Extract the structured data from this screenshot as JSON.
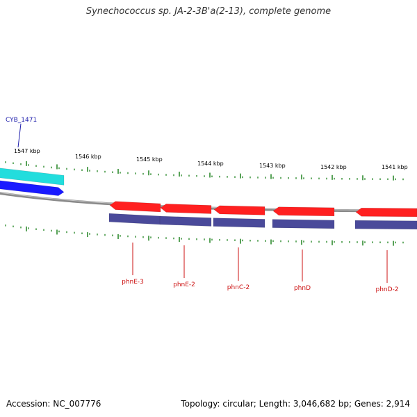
{
  "title": "Synechococcus sp. JA-2-3B'a(2-13), complete genome",
  "footer": {
    "accession": "Accession: NC_007776",
    "stats": "Topology: circular; Length: 3,046,682 bp; Genes: 2,914"
  },
  "colors": {
    "forward_gene": "#1a1aff",
    "forward_highlight": "#22dddd",
    "reverse_gene": "#ff2020",
    "reverse_cds": "#4a4a9a",
    "tick": "#2e8b2e",
    "backbone": "#8a8a8a",
    "forward_label": "#1a1aaa",
    "reverse_label": "#cc1111"
  },
  "kbp_labels": [
    "1547 kbp",
    "1546 kbp",
    "1545 kbp",
    "1544 kbp",
    "1543 kbp",
    "1542 kbp",
    "1541 kbp"
  ],
  "genes": {
    "forward": [
      {
        "name": "CYB_1471"
      }
    ],
    "reverse": [
      {
        "name": "phnE-3"
      },
      {
        "name": "phnE-2"
      },
      {
        "name": "phnC-2"
      },
      {
        "name": "phnD"
      },
      {
        "name": "phnD-2"
      }
    ]
  }
}
